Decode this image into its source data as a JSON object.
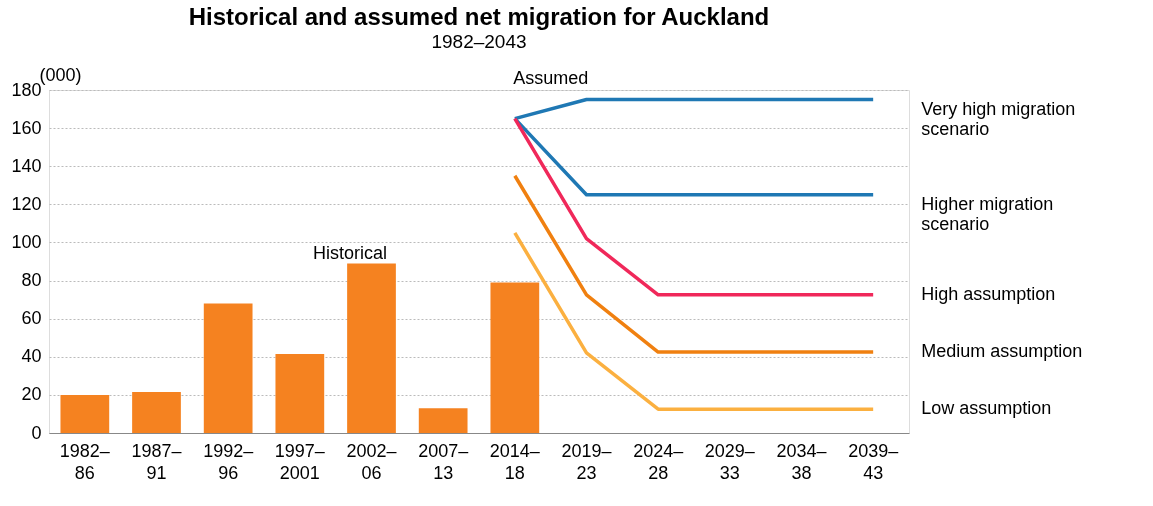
{
  "chart_data": {
    "type": "bar",
    "title": "Historical and assumed net migration for Auckland",
    "subtitle": "1982–2043",
    "ylabel": "(000)",
    "categories": [
      "1982–86",
      "1987–91",
      "1992–96",
      "1997–2001",
      "2002–06",
      "2007–13",
      "2014–18",
      "2019–23",
      "2024–28",
      "2029–33",
      "2034–38",
      "2039–43"
    ],
    "series": [
      {
        "color": "#f58220",
        "values": [
          20,
          21.5,
          68,
          41.5,
          89,
          13,
          79,
          null,
          null,
          null,
          null,
          null
        ]
      },
      {
        "type": "line",
        "name": "Very high migration scenario",
        "color": "#1f78b4",
        "values": [
          null,
          null,
          null,
          null,
          null,
          null,
          165,
          175,
          175,
          175,
          175,
          175
        ]
      },
      {
        "type": "line",
        "name": "Higher migration scenario",
        "color": "#1f78b4",
        "values": [
          null,
          null,
          null,
          null,
          null,
          null,
          165,
          125,
          125,
          125,
          125,
          125
        ]
      },
      {
        "type": "line",
        "name": "High assumption",
        "color": "#f0285a",
        "values": [
          null,
          null,
          null,
          null,
          null,
          null,
          165,
          102,
          72.5,
          72.5,
          72.5,
          72.5
        ]
      },
      {
        "type": "line",
        "name": "Medium assumption",
        "color": "#f08010",
        "values": [
          null,
          null,
          null,
          null,
          null,
          null,
          135,
          72.5,
          42.5,
          42.5,
          42.5,
          42.5
        ]
      },
      {
        "type": "line",
        "name": "Low assumption",
        "color": "#fbb040",
        "values": [
          null,
          null,
          null,
          null,
          null,
          null,
          105,
          42,
          12.5,
          12.5,
          12.5,
          12.5
        ]
      }
    ],
    "ylim": [
      0,
      180
    ],
    "yticks": [
      0,
      20,
      40,
      60,
      80,
      100,
      120,
      140,
      160,
      180
    ],
    "grid": "y",
    "legend": false,
    "annotations": [
      "Historical",
      "Assumed"
    ]
  }
}
